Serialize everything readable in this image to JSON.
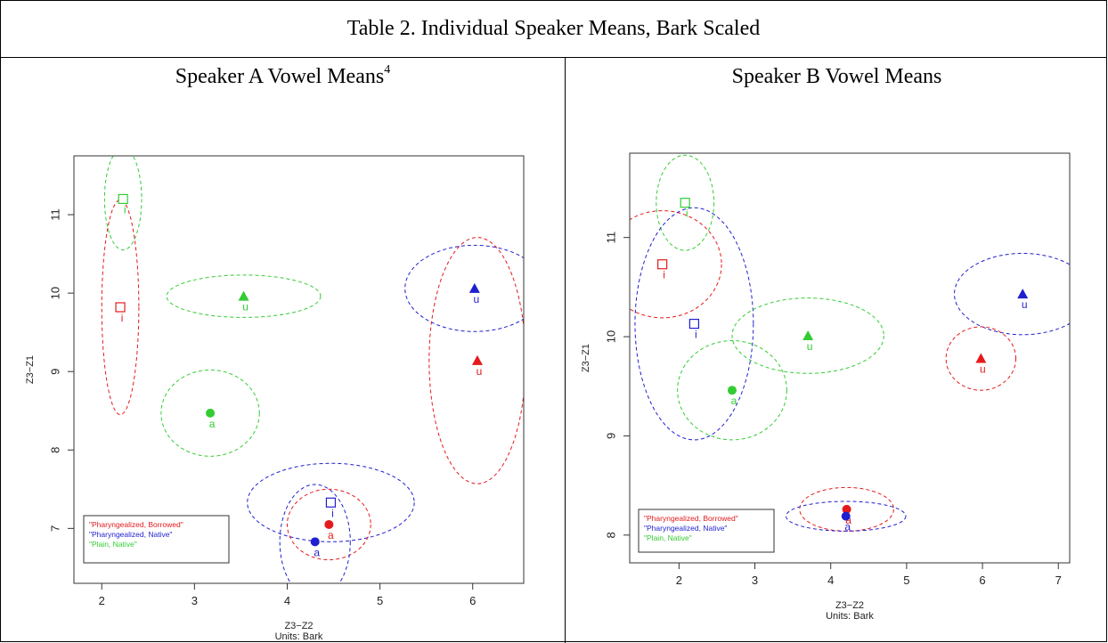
{
  "table_title": "Table 2. Individual Speaker Means, Bark Scaled",
  "colors": {
    "red": "#e41a1c",
    "blue": "#1f1fd0",
    "green": "#33cc33",
    "axis": "#333333"
  },
  "chart_data": [
    {
      "type": "scatter",
      "panel_title": "Speaker A Vowel Means",
      "footnote": "4",
      "xlabel": "Z3−Z2",
      "xlabel2": "Units: Bark",
      "ylabel": "Z3−Z1",
      "xlim": [
        1.7,
        6.55
      ],
      "ylim": [
        6.3,
        11.75
      ],
      "xticks": [
        "2",
        "3",
        "4",
        "5",
        "6"
      ],
      "yticks": [
        "7",
        "8",
        "9",
        "10",
        "11"
      ],
      "legend": [
        "\"Pharyngealized, Borrowed\"",
        "\"Pharyngealized, Native\"",
        "\"Plain, Native\""
      ],
      "legend_position": "bottom-left",
      "points": [
        {
          "series": "Plain, Native",
          "color": "green",
          "vowel": "i",
          "shape": "square",
          "x": 2.23,
          "y": 11.2,
          "ellipse": {
            "rx": 0.2,
            "ry": 0.65
          }
        },
        {
          "series": "Pharyngealized, Borrowed",
          "color": "red",
          "vowel": "i",
          "shape": "square",
          "x": 2.2,
          "y": 9.82,
          "ellipse": {
            "rx": 0.2,
            "ry": 1.37
          }
        },
        {
          "series": "Plain, Native",
          "color": "green",
          "vowel": "u",
          "shape": "triangle",
          "x": 3.53,
          "y": 9.96,
          "ellipse": {
            "rx": 0.83,
            "ry": 0.27
          }
        },
        {
          "series": "Plain, Native",
          "color": "green",
          "vowel": "a",
          "shape": "circle",
          "x": 3.17,
          "y": 8.47,
          "ellipse": {
            "rx": 0.53,
            "ry": 0.55
          }
        },
        {
          "series": "Pharyngealized, Native",
          "color": "blue",
          "vowel": "u",
          "shape": "triangle",
          "x": 6.02,
          "y": 10.06,
          "ellipse": {
            "rx": 0.75,
            "ry": 0.55
          }
        },
        {
          "series": "Pharyngealized, Borrowed",
          "color": "red",
          "vowel": "u",
          "shape": "triangle",
          "x": 6.05,
          "y": 9.14,
          "ellipse": {
            "rx": 0.52,
            "ry": 1.57
          }
        },
        {
          "series": "Pharyngealized, Native",
          "color": "blue",
          "vowel": "i",
          "shape": "square",
          "x": 4.47,
          "y": 7.33,
          "ellipse": {
            "rx": 0.9,
            "ry": 0.5
          }
        },
        {
          "series": "Pharyngealized, Borrowed",
          "color": "red",
          "vowel": "a",
          "shape": "circle",
          "x": 4.45,
          "y": 7.05,
          "ellipse": {
            "rx": 0.45,
            "ry": 0.45
          }
        },
        {
          "series": "Pharyngealized, Native",
          "color": "blue",
          "vowel": "a",
          "shape": "circle",
          "x": 4.3,
          "y": 6.83,
          "ellipse": {
            "rx": 0.38,
            "ry": 0.73
          }
        }
      ]
    },
    {
      "type": "scatter",
      "panel_title": "Speaker B Vowel Means",
      "footnote": "",
      "xlabel": "Z3−Z2",
      "xlabel2": "Units: Bark",
      "ylabel": "Z3−Z1",
      "xlim": [
        1.35,
        7.15
      ],
      "ylim": [
        7.72,
        11.85
      ],
      "xticks": [
        "2",
        "3",
        "4",
        "5",
        "6",
        "7"
      ],
      "yticks": [
        "8",
        "9",
        "10",
        "11"
      ],
      "legend": [
        "\"Pharyngealized, Borrowed\"",
        "\"Pharyngealized, Native\"",
        "\"Plain, Native\""
      ],
      "legend_position": "bottom-left",
      "points": [
        {
          "series": "Plain, Native",
          "color": "green",
          "vowel": "i",
          "shape": "square",
          "x": 2.08,
          "y": 11.35,
          "ellipse": {
            "rx": 0.38,
            "ry": 0.48
          }
        },
        {
          "series": "Pharyngealized, Borrowed",
          "color": "red",
          "vowel": "i",
          "shape": "square",
          "x": 1.78,
          "y": 10.73,
          "ellipse": {
            "rx": 0.78,
            "ry": 0.54
          }
        },
        {
          "series": "Pharyngealized, Native",
          "color": "blue",
          "vowel": "i",
          "shape": "square",
          "x": 2.2,
          "y": 10.13,
          "ellipse": {
            "rx": 0.78,
            "ry": 1.17
          }
        },
        {
          "series": "Plain, Native",
          "color": "green",
          "vowel": "u",
          "shape": "triangle",
          "x": 3.7,
          "y": 10.01,
          "ellipse": {
            "rx": 1.0,
            "ry": 0.38
          }
        },
        {
          "series": "Plain, Native",
          "color": "green",
          "vowel": "a",
          "shape": "circle",
          "x": 2.7,
          "y": 9.46,
          "ellipse": {
            "rx": 0.72,
            "ry": 0.5
          }
        },
        {
          "series": "Pharyngealized, Native",
          "color": "blue",
          "vowel": "u",
          "shape": "triangle",
          "x": 6.53,
          "y": 10.43,
          "ellipse": {
            "rx": 0.9,
            "ry": 0.41
          }
        },
        {
          "series": "Pharyngealized, Borrowed",
          "color": "red",
          "vowel": "u",
          "shape": "triangle",
          "x": 5.98,
          "y": 9.78,
          "ellipse": {
            "rx": 0.46,
            "ry": 0.32
          }
        },
        {
          "series": "Pharyngealized, Borrowed",
          "color": "red",
          "vowel": "a",
          "shape": "circle",
          "x": 4.21,
          "y": 8.26,
          "ellipse": {
            "rx": 0.62,
            "ry": 0.22
          }
        },
        {
          "series": "Pharyngealized, Native",
          "color": "blue",
          "vowel": "a",
          "shape": "circle",
          "x": 4.2,
          "y": 8.19,
          "ellipse": {
            "rx": 0.79,
            "ry": 0.15
          }
        }
      ]
    }
  ]
}
